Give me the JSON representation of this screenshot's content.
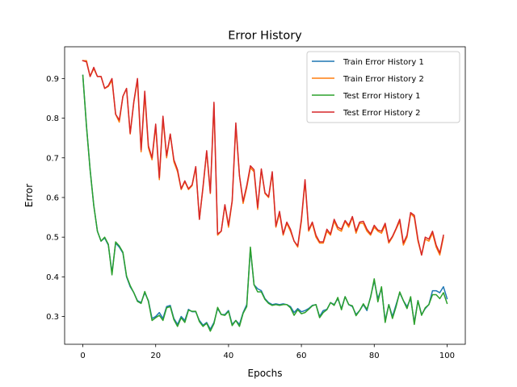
{
  "chart_data": {
    "type": "line",
    "title": "Error History",
    "xlabel": "Epochs",
    "ylabel": "Error",
    "xlim": [
      -5,
      105
    ],
    "ylim": [
      0.23,
      0.98
    ],
    "x_ticks": [
      0,
      20,
      40,
      60,
      80,
      100
    ],
    "y_ticks": [
      0.3,
      0.4,
      0.5,
      0.6,
      0.7,
      0.8,
      0.9
    ],
    "grid": false,
    "legend_position": "top-right",
    "series": [
      {
        "name": "Train Error History 1",
        "color": "#1f77b4",
        "values": [
          0.908,
          0.78,
          0.67,
          0.58,
          0.515,
          0.49,
          0.498,
          0.48,
          0.41,
          0.485,
          0.475,
          0.46,
          0.4,
          0.375,
          0.36,
          0.34,
          0.335,
          0.36,
          0.34,
          0.295,
          0.3,
          0.31,
          0.295,
          0.325,
          0.328,
          0.295,
          0.28,
          0.3,
          0.29,
          0.318,
          0.312,
          0.312,
          0.29,
          0.278,
          0.285,
          0.268,
          0.285,
          0.32,
          0.305,
          0.305,
          0.315,
          0.28,
          0.29,
          0.28,
          0.31,
          0.33,
          0.47,
          0.38,
          0.37,
          0.365,
          0.345,
          0.335,
          0.33,
          0.332,
          0.33,
          0.332,
          0.33,
          0.325,
          0.31,
          0.32,
          0.312,
          0.315,
          0.32,
          0.328,
          0.33,
          0.3,
          0.315,
          0.318,
          0.335,
          0.33,
          0.345,
          0.32,
          0.35,
          0.33,
          0.325,
          0.305,
          0.315,
          0.33,
          0.315,
          0.35,
          0.39,
          0.345,
          0.37,
          0.29,
          0.33,
          0.3,
          0.33,
          0.36,
          0.34,
          0.325,
          0.345,
          0.285,
          0.34,
          0.305,
          0.32,
          0.33,
          0.365,
          0.365,
          0.36,
          0.375,
          0.345
        ]
      },
      {
        "name": "Train Error History 2",
        "color": "#ff7f0e",
        "values": [
          0.945,
          0.945,
          0.905,
          0.925,
          0.905,
          0.905,
          0.875,
          0.88,
          0.895,
          0.81,
          0.79,
          0.855,
          0.875,
          0.76,
          0.84,
          0.895,
          0.715,
          0.86,
          0.725,
          0.695,
          0.78,
          0.645,
          0.8,
          0.7,
          0.76,
          0.69,
          0.665,
          0.62,
          0.64,
          0.62,
          0.63,
          0.675,
          0.545,
          0.625,
          0.715,
          0.61,
          0.835,
          0.505,
          0.515,
          0.58,
          0.525,
          0.59,
          0.78,
          0.655,
          0.585,
          0.625,
          0.675,
          0.665,
          0.57,
          0.67,
          0.61,
          0.6,
          0.66,
          0.525,
          0.56,
          0.505,
          0.535,
          0.515,
          0.49,
          0.475,
          0.54,
          0.64,
          0.515,
          0.535,
          0.5,
          0.485,
          0.485,
          0.515,
          0.505,
          0.54,
          0.52,
          0.515,
          0.54,
          0.525,
          0.55,
          0.51,
          0.535,
          0.535,
          0.515,
          0.505,
          0.525,
          0.515,
          0.51,
          0.53,
          0.485,
          0.5,
          0.52,
          0.54,
          0.48,
          0.5,
          0.56,
          0.55,
          0.49,
          0.455,
          0.495,
          0.49,
          0.51,
          0.475,
          0.455,
          0.5
        ]
      },
      {
        "name": "Test Error History 1",
        "color": "#2ca02c",
        "values": [
          0.908,
          0.78,
          0.67,
          0.58,
          0.515,
          0.49,
          0.5,
          0.482,
          0.405,
          0.488,
          0.478,
          0.462,
          0.402,
          0.378,
          0.36,
          0.338,
          0.333,
          0.363,
          0.338,
          0.29,
          0.297,
          0.303,
          0.29,
          0.322,
          0.325,
          0.292,
          0.275,
          0.297,
          0.285,
          0.316,
          0.313,
          0.313,
          0.287,
          0.275,
          0.283,
          0.263,
          0.282,
          0.323,
          0.305,
          0.303,
          0.313,
          0.277,
          0.29,
          0.275,
          0.308,
          0.325,
          0.475,
          0.38,
          0.362,
          0.362,
          0.343,
          0.333,
          0.328,
          0.33,
          0.328,
          0.33,
          0.33,
          0.322,
          0.303,
          0.317,
          0.307,
          0.31,
          0.318,
          0.327,
          0.33,
          0.297,
          0.31,
          0.317,
          0.335,
          0.328,
          0.348,
          0.317,
          0.35,
          0.33,
          0.327,
          0.302,
          0.315,
          0.332,
          0.318,
          0.348,
          0.395,
          0.337,
          0.375,
          0.285,
          0.33,
          0.295,
          0.325,
          0.362,
          0.34,
          0.32,
          0.35,
          0.28,
          0.34,
          0.303,
          0.322,
          0.33,
          0.355,
          0.355,
          0.345,
          0.36,
          0.333
        ]
      },
      {
        "name": "Test Error History 2",
        "color": "#d62728",
        "values": [
          0.945,
          0.942,
          0.905,
          0.928,
          0.905,
          0.905,
          0.875,
          0.882,
          0.9,
          0.81,
          0.795,
          0.855,
          0.875,
          0.762,
          0.842,
          0.9,
          0.72,
          0.868,
          0.73,
          0.7,
          0.785,
          0.65,
          0.805,
          0.705,
          0.76,
          0.695,
          0.67,
          0.622,
          0.642,
          0.622,
          0.632,
          0.678,
          0.545,
          0.628,
          0.718,
          0.612,
          0.84,
          0.508,
          0.515,
          0.582,
          0.53,
          0.592,
          0.788,
          0.655,
          0.59,
          0.63,
          0.68,
          0.67,
          0.575,
          0.672,
          0.612,
          0.602,
          0.665,
          0.528,
          0.565,
          0.508,
          0.538,
          0.52,
          0.49,
          0.478,
          0.545,
          0.645,
          0.518,
          0.538,
          0.505,
          0.488,
          0.488,
          0.52,
          0.508,
          0.545,
          0.525,
          0.52,
          0.542,
          0.53,
          0.552,
          0.515,
          0.538,
          0.54,
          0.52,
          0.508,
          0.53,
          0.518,
          0.515,
          0.535,
          0.488,
          0.502,
          0.522,
          0.545,
          0.485,
          0.505,
          0.562,
          0.555,
          0.495,
          0.455,
          0.5,
          0.495,
          0.515,
          0.48,
          0.46,
          0.505
        ]
      }
    ]
  }
}
